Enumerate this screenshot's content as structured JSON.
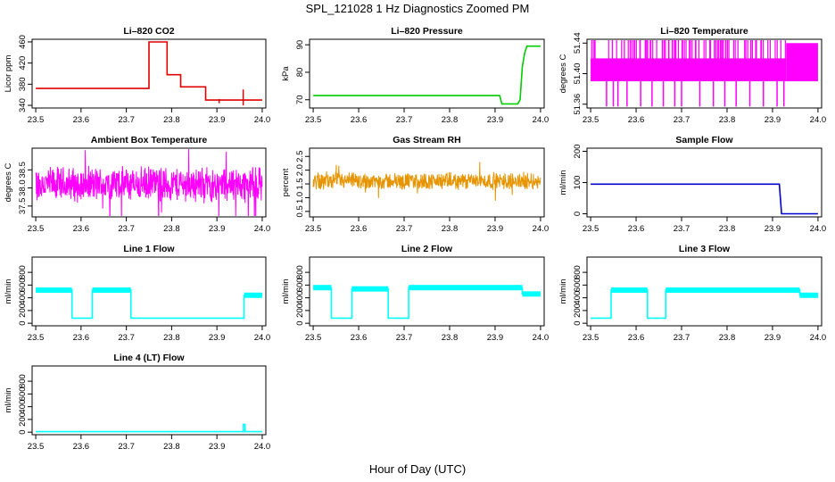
{
  "title": "SPL_121028  1 Hz Diagnostics Zoomed PM",
  "xlabel": "Hour of Day (UTC)",
  "chart_data": [
    {
      "type": "line",
      "title": "Li–820 CO2",
      "ylabel": "Licor ppm",
      "xlim": [
        23.5,
        24.0
      ],
      "ylim": [
        335,
        465
      ],
      "xticks": [
        "23.5",
        "23.6",
        "23.7",
        "23.8",
        "23.9",
        "24.0"
      ],
      "yticks": [
        340,
        380,
        420,
        460
      ],
      "color": "#e00000",
      "series": [
        {
          "x": [
            23.5,
            23.75,
            23.75,
            23.79,
            23.79,
            23.82,
            23.82,
            23.875,
            23.875,
            23.96,
            23.96,
            24.0
          ],
          "y": [
            372,
            372,
            460,
            460,
            398,
            398,
            375,
            375,
            350,
            350,
            350,
            350
          ]
        }
      ],
      "spikes": [
        {
          "x": 23.958,
          "y0": 340,
          "y1": 370
        },
        {
          "x": 23.905,
          "y0": 344,
          "y1": 352
        }
      ]
    },
    {
      "type": "line",
      "title": "Li–820 Pressure",
      "ylabel": "kPa",
      "xlim": [
        23.5,
        24.0
      ],
      "ylim": [
        67,
        92
      ],
      "xticks": [
        "23.5",
        "23.6",
        "23.7",
        "23.8",
        "23.9",
        "24.0"
      ],
      "yticks": [
        70,
        80,
        90
      ],
      "color": "#00cc00",
      "series": [
        {
          "x": [
            23.5,
            23.91,
            23.915,
            23.95,
            23.955,
            23.96,
            23.965,
            23.97,
            24.0
          ],
          "y": [
            71.5,
            71.5,
            68.5,
            68.5,
            70,
            82,
            87,
            89.5,
            89.5
          ]
        }
      ]
    },
    {
      "type": "line",
      "title": "Li–820 Temperature",
      "ylabel": "degrees C",
      "xlim": [
        23.5,
        24.0
      ],
      "ylim": [
        51.355,
        51.445
      ],
      "xticks": [
        "23.5",
        "23.6",
        "23.7",
        "23.8",
        "23.9",
        "24.0"
      ],
      "yticks": [
        "51.36",
        "51.40",
        "51.44"
      ],
      "color": "#ff00ff",
      "band": {
        "x0": 23.5,
        "x1": 23.93,
        "y0": 51.39,
        "y1": 51.42
      },
      "band2": {
        "x0": 23.93,
        "x1": 24.0,
        "y0": 51.39,
        "y1": 51.44
      },
      "dips": [
        23.535,
        23.55,
        23.56,
        23.58,
        23.61,
        23.635,
        23.66,
        23.685,
        23.7,
        23.74,
        23.77,
        23.795,
        23.82,
        23.85,
        23.88,
        23.91,
        23.925
      ]
    },
    {
      "type": "line",
      "title": "Ambient Box Temperature",
      "ylabel": "degrees C",
      "xlim": [
        23.5,
        24.0
      ],
      "ylim": [
        37.2,
        39.1
      ],
      "xticks": [
        "23.5",
        "23.6",
        "23.7",
        "23.8",
        "23.9",
        "24.0"
      ],
      "yticks": [
        "37.5",
        "38.0",
        "38.5"
      ],
      "color": "#ff00ff",
      "noise": {
        "mean": 38.1,
        "amp": 0.55
      }
    },
    {
      "type": "line",
      "title": "Gas Stream RH",
      "ylabel": "percent",
      "xlim": [
        23.5,
        24.0
      ],
      "ylim": [
        0.3,
        2.8
      ],
      "xticks": [
        "23.5",
        "23.6",
        "23.7",
        "23.8",
        "23.9",
        "24.0"
      ],
      "yticks": [
        "0.5",
        "1.0",
        "1.5",
        "2.0",
        "2.5"
      ],
      "color": "#e69500",
      "noise": {
        "mean": 1.6,
        "amp": 0.35
      }
    },
    {
      "type": "line",
      "title": "Sample Flow",
      "ylabel": "ml/min",
      "xlim": [
        23.5,
        24.0
      ],
      "ylim": [
        -10,
        210
      ],
      "xticks": [
        "23.5",
        "23.6",
        "23.7",
        "23.8",
        "23.9",
        "24.0"
      ],
      "yticks": [
        0,
        100,
        200
      ],
      "color": "#0000cc",
      "series": [
        {
          "x": [
            23.5,
            23.91,
            23.915,
            23.92,
            24.0
          ],
          "y": [
            95,
            95,
            95,
            0,
            0
          ]
        }
      ]
    },
    {
      "type": "line",
      "title": "Line 1 Flow",
      "ylabel": "ml/min",
      "xlim": [
        23.5,
        24.0
      ],
      "ylim": [
        -40,
        1040
      ],
      "xticks": [
        "23.5",
        "23.6",
        "23.7",
        "23.8",
        "23.9",
        "24.0"
      ],
      "yticks": [
        0,
        200,
        400,
        600,
        800
      ],
      "color": "#00ffff",
      "series": [
        {
          "x": [
            23.5,
            23.58,
            23.58,
            23.625,
            23.625,
            23.71,
            23.71,
            23.96,
            23.96,
            24.0
          ],
          "y": [
            520,
            520,
            80,
            80,
            520,
            520,
            80,
            80,
            440,
            440
          ]
        }
      ]
    },
    {
      "type": "line",
      "title": "Line 2 Flow",
      "ylabel": "ml/min",
      "xlim": [
        23.5,
        24.0
      ],
      "ylim": [
        -40,
        1040
      ],
      "xticks": [
        "23.5",
        "23.6",
        "23.7",
        "23.8",
        "23.9",
        "24.0"
      ],
      "yticks": [
        0,
        200,
        400,
        600,
        800
      ],
      "color": "#00ffff",
      "series": [
        {
          "x": [
            23.5,
            23.54,
            23.54,
            23.585,
            23.585,
            23.665,
            23.665,
            23.71,
            23.71,
            23.96,
            23.96,
            24.0
          ],
          "y": [
            560,
            560,
            80,
            80,
            540,
            540,
            80,
            80,
            560,
            560,
            460,
            460
          ]
        }
      ]
    },
    {
      "type": "line",
      "title": "Line 3 Flow",
      "ylabel": "ml/min",
      "xlim": [
        23.5,
        24.0
      ],
      "ylim": [
        -40,
        1040
      ],
      "xticks": [
        "23.5",
        "23.6",
        "23.7",
        "23.8",
        "23.9",
        "24.0"
      ],
      "yticks": [
        0,
        200,
        400,
        600,
        800
      ],
      "color": "#00ffff",
      "series": [
        {
          "x": [
            23.5,
            23.5,
            23.545,
            23.545,
            23.625,
            23.625,
            23.665,
            23.665,
            23.96,
            23.96,
            24.0
          ],
          "y": [
            80,
            80,
            80,
            520,
            520,
            80,
            80,
            520,
            520,
            440,
            440
          ]
        }
      ]
    },
    {
      "type": "line",
      "title": "Line 4 (LT) Flow",
      "ylabel": "ml/min",
      "xlim": [
        23.5,
        24.0
      ],
      "ylim": [
        -40,
        1040
      ],
      "xticks": [
        "23.5",
        "23.6",
        "23.7",
        "23.8",
        "23.9",
        "24.0"
      ],
      "yticks": [
        0,
        200,
        400,
        600,
        800
      ],
      "color": "#00ffff",
      "series": [
        {
          "x": [
            23.5,
            23.958,
            23.958,
            23.962,
            23.962,
            24.0
          ],
          "y": [
            8,
            8,
            120,
            120,
            8,
            8
          ]
        }
      ]
    }
  ]
}
